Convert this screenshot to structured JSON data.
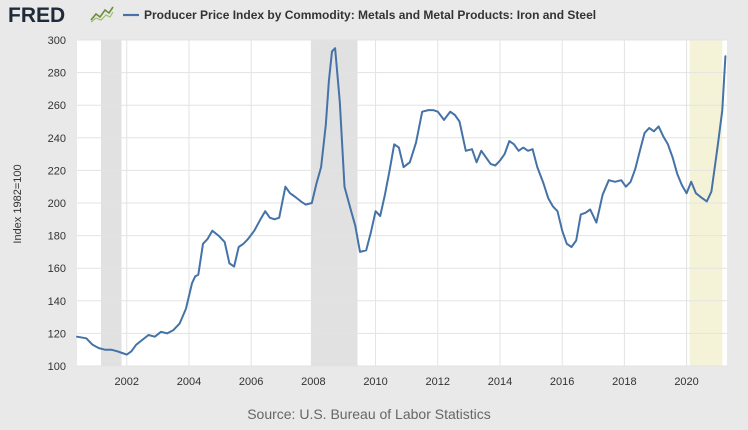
{
  "header": {
    "logo_text": "FRED",
    "logo_icon": "trend-line-icon",
    "legend_swatch_color": "#4572a7"
  },
  "footer": {
    "source": "Source: U.S. Bureau of Labor Statistics"
  },
  "colors": {
    "series": "#4572a7",
    "recession": "#e1e1e1",
    "highlight": "#f5f3d7",
    "plot_bg": "#ffffff",
    "page_bg": "#e9e9e9"
  },
  "chart_data": {
    "type": "line",
    "title": "Producer Price Index by Commodity: Metals and Metal Products: Iron and Steel",
    "ylabel": "Index 1982=100",
    "xlabel": "",
    "xlim": [
      2000.4,
      2021.3
    ],
    "ylim": [
      100,
      300
    ],
    "x_ticks": [
      "2002",
      "2004",
      "2006",
      "2008",
      "2010",
      "2012",
      "2014",
      "2016",
      "2018",
      "2020"
    ],
    "y_ticks": [
      "100",
      "120",
      "140",
      "160",
      "180",
      "200",
      "220",
      "240",
      "260",
      "280",
      "300"
    ],
    "grid": true,
    "recessions": [
      [
        2001.17,
        2001.83
      ],
      [
        2007.92,
        2009.42
      ]
    ],
    "highlight": [
      2020.1,
      2021.15
    ],
    "series": [
      {
        "x": [
          2000.4,
          2000.7,
          2000.9,
          2001.1,
          2001.3,
          2001.5,
          2001.7,
          2001.85,
          2002.0,
          2002.15,
          2002.3,
          2002.5,
          2002.7,
          2002.9,
          2003.1,
          2003.3,
          2003.5,
          2003.7,
          2003.9,
          2004.1,
          2004.2,
          2004.3,
          2004.45,
          2004.6,
          2004.75,
          2004.95,
          2005.15,
          2005.3,
          2005.45,
          2005.6,
          2005.75,
          2005.9,
          2006.1,
          2006.3,
          2006.45,
          2006.6,
          2006.75,
          2006.9,
          2007.1,
          2007.25,
          2007.4,
          2007.6,
          2007.75,
          2007.95,
          2008.1,
          2008.25,
          2008.4,
          2008.5,
          2008.6,
          2008.7,
          2008.85,
          2009.0,
          2009.2,
          2009.35,
          2009.5,
          2009.7,
          2009.85,
          2010.0,
          2010.15,
          2010.3,
          2010.45,
          2010.6,
          2010.75,
          2010.9,
          2011.1,
          2011.3,
          2011.5,
          2011.7,
          2011.85,
          2012.0,
          2012.2,
          2012.4,
          2012.55,
          2012.7,
          2012.9,
          2013.1,
          2013.25,
          2013.4,
          2013.55,
          2013.7,
          2013.85,
          2014.0,
          2014.15,
          2014.3,
          2014.45,
          2014.6,
          2014.75,
          2014.9,
          2015.05,
          2015.2,
          2015.4,
          2015.55,
          2015.7,
          2015.85,
          2016.0,
          2016.15,
          2016.3,
          2016.45,
          2016.6,
          2016.75,
          2016.9,
          2017.1,
          2017.3,
          2017.5,
          2017.7,
          2017.9,
          2018.05,
          2018.2,
          2018.35,
          2018.5,
          2018.65,
          2018.8,
          2018.95,
          2019.1,
          2019.25,
          2019.4,
          2019.55,
          2019.7,
          2019.85,
          2020.0,
          2020.15,
          2020.3,
          2020.5,
          2020.65,
          2020.8,
          2021.0,
          2021.15,
          2021.25
        ],
        "values": [
          118,
          117,
          113,
          111,
          110,
          110,
          109,
          108,
          107,
          109,
          113,
          116,
          119,
          118,
          121,
          120,
          122,
          126,
          135,
          151,
          155,
          156,
          175,
          178,
          183,
          180,
          176,
          163,
          161,
          173,
          175,
          178,
          183,
          190,
          195,
          191,
          190,
          191,
          210,
          206,
          204,
          201,
          199,
          200,
          212,
          222,
          248,
          275,
          293,
          295,
          262,
          210,
          196,
          186,
          170,
          171,
          182,
          195,
          192,
          205,
          220,
          236,
          234,
          222,
          225,
          237,
          256,
          257,
          257,
          256,
          251,
          256,
          254,
          250,
          232,
          233,
          225,
          232,
          228,
          224,
          223,
          226,
          230,
          238,
          236,
          232,
          234,
          232,
          233,
          222,
          212,
          203,
          198,
          195,
          183,
          175,
          173,
          177,
          193,
          194,
          196,
          188,
          205,
          214,
          213,
          214,
          210,
          213,
          221,
          232,
          243,
          246,
          244,
          247,
          241,
          236,
          228,
          218,
          211,
          206,
          213,
          206,
          203,
          201,
          207,
          235,
          257,
          290
        ]
      }
    ]
  }
}
